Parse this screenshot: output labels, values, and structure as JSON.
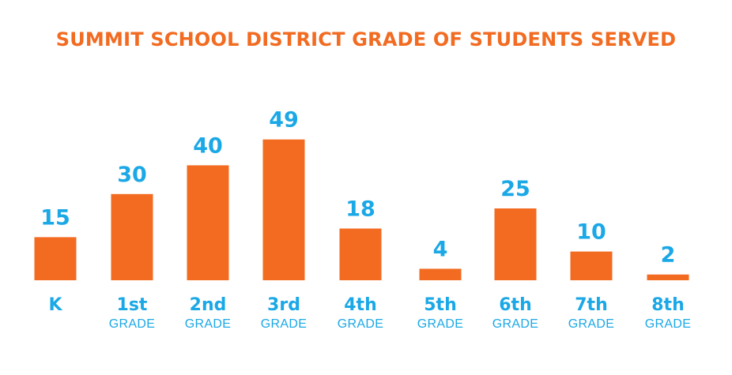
{
  "colors": {
    "title": "#f26b21",
    "bar": "#f26b21",
    "labels": "#1ba8e6"
  },
  "chart_data": {
    "type": "bar",
    "title": "SUMMIT SCHOOL DISTRICT GRADE OF STUDENTS SERVED",
    "categories": [
      "K",
      "1st",
      "2nd",
      "3rd",
      "4th",
      "5th",
      "6th",
      "7th",
      "8th"
    ],
    "category_sublabels": [
      "",
      "GRADE",
      "GRADE",
      "GRADE",
      "GRADE",
      "GRADE",
      "GRADE",
      "GRADE",
      "GRADE"
    ],
    "values": [
      15,
      30,
      40,
      49,
      18,
      4,
      25,
      10,
      2
    ],
    "data_labels": true,
    "grid": false,
    "legend": "none"
  }
}
